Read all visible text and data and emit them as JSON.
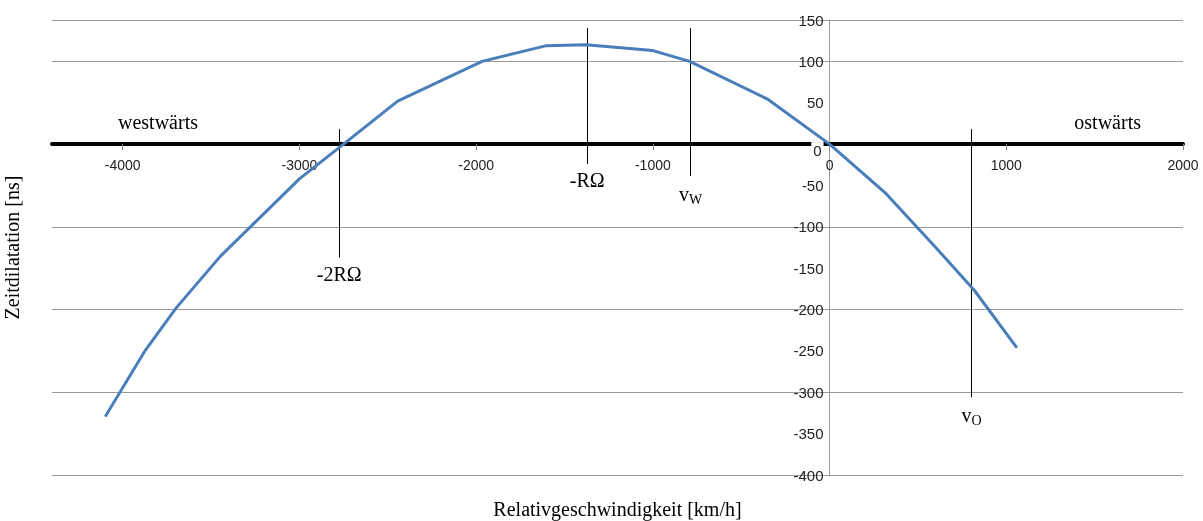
{
  "chart_data": {
    "type": "line",
    "xlabel": "Relativgeschwindigkeit [km/h]",
    "ylabel": "Zeitdilatation [ns]",
    "series": [
      {
        "color": "#4a7ebb",
        "x": [
          -4095,
          -3871,
          -3697,
          -3449,
          -3000,
          -2750,
          -2444,
          -1966,
          -1601,
          -1380,
          -1000,
          -792,
          -348,
          0,
          320,
          584,
          820,
          1056
        ],
        "values": [
          -328,
          -249,
          -198,
          -136,
          -42,
          0,
          52,
          100,
          119,
          120,
          113,
          100,
          54,
          0,
          -60,
          -121,
          -177,
          -245
        ]
      }
    ],
    "xlim": [
      -4400,
      2000
    ],
    "xticks": [
      -4000,
      -3000,
      -2000,
      -1000,
      0,
      1000,
      2000
    ],
    "ylim": [
      -400,
      150
    ],
    "yticks": [
      -400,
      -350,
      -300,
      -250,
      -200,
      -150,
      -100,
      -50,
      0,
      50,
      100,
      150
    ],
    "grid": "y",
    "marker": "none",
    "line_style": "solid",
    "ref_lines": [
      {
        "axis": "x",
        "value": -2775,
        "label": "-2RΩ"
      },
      {
        "axis": "x",
        "value": -1371,
        "label": "-RΩ"
      },
      {
        "axis": "x",
        "value": -787,
        "label": "v$_{W}$"
      },
      {
        "axis": "x",
        "value": 803,
        "label": "v$_{O}$"
      }
    ],
    "annotations": [
      "westwärts",
      "ostwärts"
    ]
  }
}
